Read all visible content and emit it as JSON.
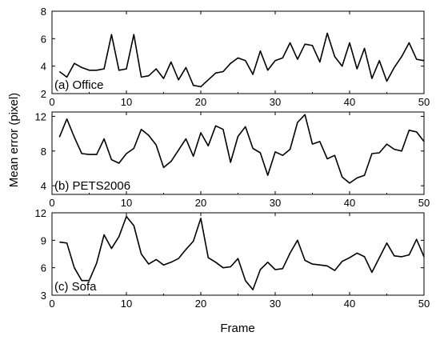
{
  "chart_data": {
    "type": "line",
    "xlabel": "Frame",
    "ylabel": "Mean error (pixel)",
    "x": [
      1,
      2,
      3,
      4,
      5,
      6,
      7,
      8,
      9,
      10,
      11,
      12,
      13,
      14,
      15,
      16,
      17,
      18,
      19,
      20,
      21,
      22,
      23,
      24,
      25,
      26,
      27,
      28,
      29,
      30,
      31,
      32,
      33,
      34,
      35,
      36,
      37,
      38,
      39,
      40,
      41,
      42,
      43,
      44,
      45,
      46,
      47,
      48,
      49,
      50
    ],
    "xlim": [
      0,
      50
    ],
    "xticks": [
      0,
      10,
      20,
      30,
      40,
      50
    ],
    "panels": [
      {
        "label": "(a) Office",
        "ylim": [
          2,
          8
        ],
        "yticks": [
          2,
          4,
          6,
          8
        ],
        "values": [
          3.6,
          3.2,
          4.2,
          3.9,
          3.7,
          3.7,
          3.8,
          6.3,
          3.7,
          3.8,
          6.3,
          3.2,
          3.3,
          3.8,
          3.1,
          4.3,
          3.0,
          3.9,
          2.6,
          2.5,
          3.0,
          3.5,
          3.6,
          4.2,
          4.6,
          4.4,
          3.4,
          5.1,
          3.7,
          4.4,
          4.6,
          5.7,
          4.5,
          5.6,
          5.5,
          4.3,
          6.4,
          4.7,
          4.0,
          5.7,
          3.8,
          5.3,
          3.1,
          4.4,
          2.9,
          3.9,
          4.7,
          5.7,
          4.5,
          4.4
        ]
      },
      {
        "label": "(b) PETS2006",
        "ylim": [
          3,
          12.5
        ],
        "yticks": [
          4,
          8,
          12
        ],
        "values": [
          9.6,
          11.7,
          9.6,
          7.7,
          7.6,
          7.6,
          9.4,
          7.0,
          6.6,
          7.7,
          8.3,
          10.5,
          9.8,
          8.7,
          6.1,
          6.8,
          8.1,
          9.4,
          7.4,
          10.1,
          8.6,
          10.9,
          10.5,
          6.7,
          9.7,
          10.8,
          8.3,
          7.8,
          5.2,
          7.9,
          7.5,
          8.2,
          11.3,
          12.2,
          8.8,
          9.1,
          7.1,
          7.5,
          5.0,
          4.3,
          4.9,
          5.2,
          7.7,
          7.8,
          8.8,
          8.2,
          8.0,
          10.4,
          10.2,
          9.1
        ]
      },
      {
        "label": "(c) Sofa",
        "ylim": [
          3,
          12
        ],
        "yticks": [
          3,
          6,
          9,
          12
        ],
        "values": [
          8.8,
          8.7,
          6.0,
          4.6,
          4.6,
          6.5,
          9.6,
          8.1,
          9.4,
          11.6,
          10.6,
          7.5,
          6.4,
          6.9,
          6.3,
          6.6,
          7.0,
          8.0,
          8.9,
          11.4,
          7.1,
          6.6,
          6.0,
          6.1,
          7.0,
          4.6,
          3.6,
          5.8,
          6.6,
          5.8,
          5.9,
          7.6,
          9.0,
          6.8,
          6.4,
          6.3,
          6.2,
          5.7,
          6.7,
          7.1,
          7.6,
          7.2,
          5.5,
          7.1,
          8.7,
          7.3,
          7.2,
          7.4,
          9.1,
          7.2
        ]
      }
    ]
  }
}
